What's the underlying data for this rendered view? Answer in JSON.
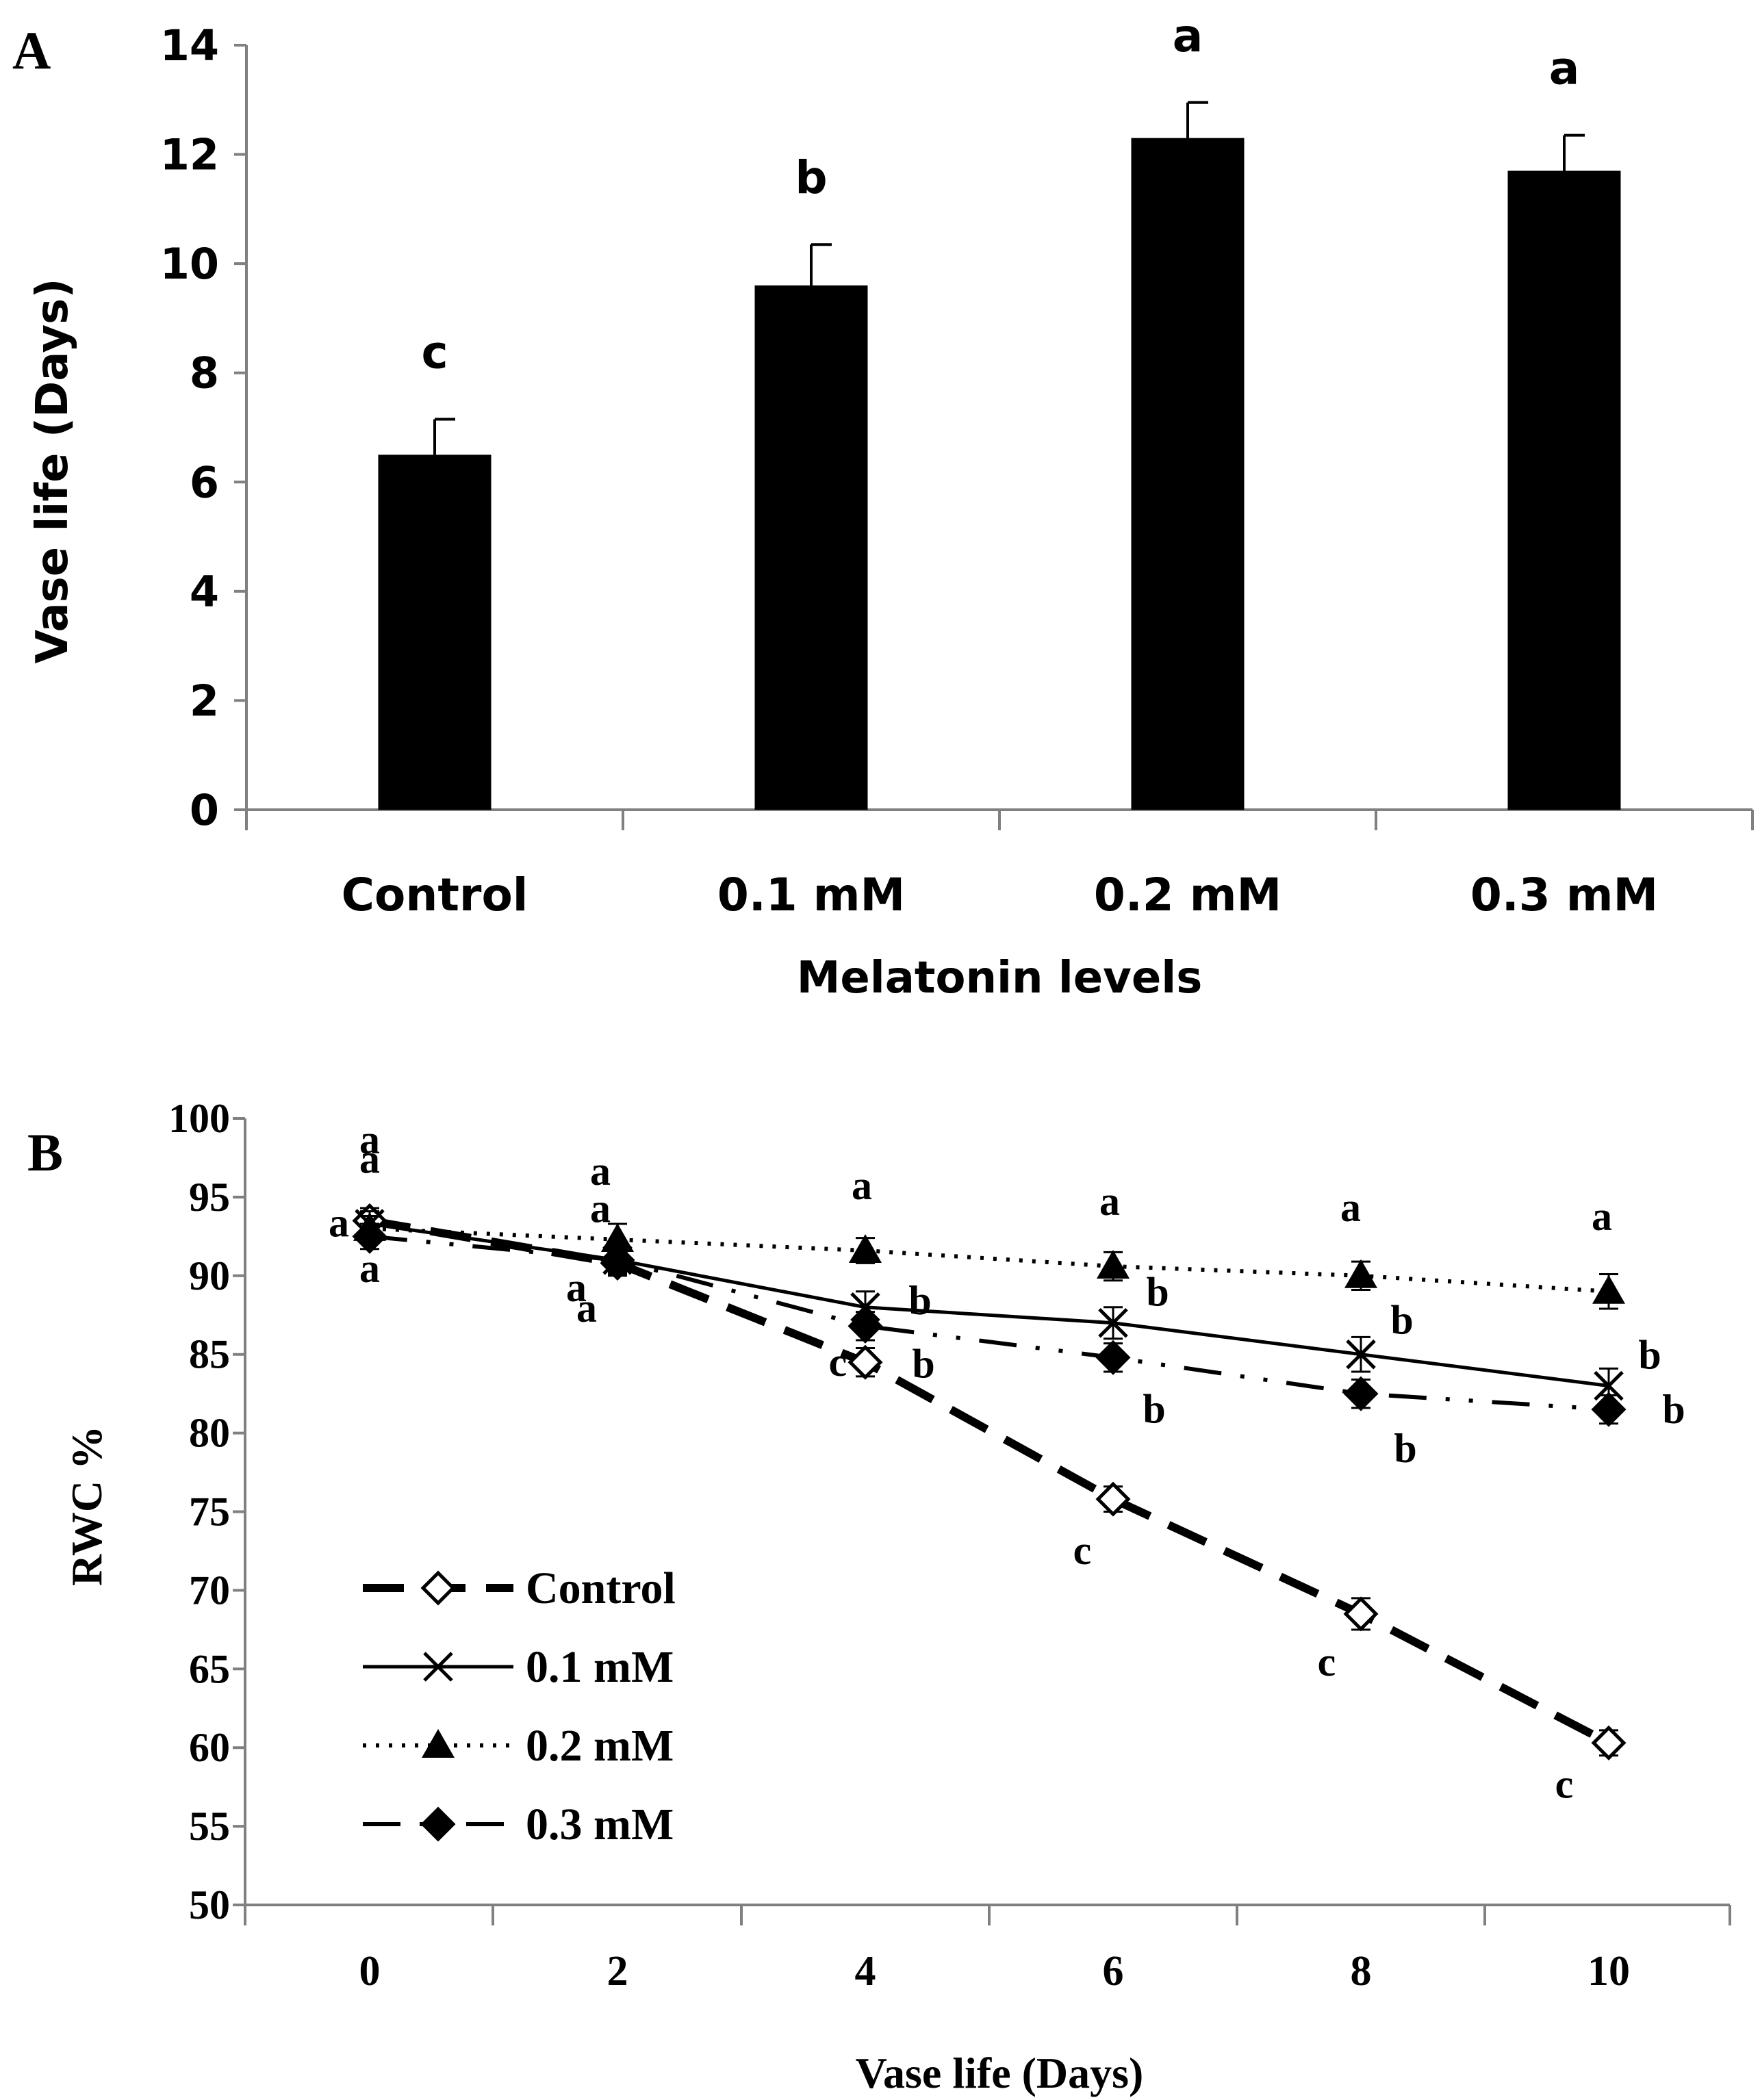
{
  "chart_data": [
    {
      "panel": "A",
      "type": "bar",
      "categories": [
        "Control",
        "0.1 mM",
        "0.2 mM",
        "0.3 mM"
      ],
      "values": [
        6.5,
        9.6,
        12.3,
        11.7
      ],
      "errors": [
        0.65,
        0.75,
        0.65,
        0.65
      ],
      "letters": [
        "c",
        "b",
        "a",
        "a"
      ],
      "xlabel": "Melatonin levels",
      "ylabel": "Vase life (Days)",
      "ylim": [
        0,
        14
      ],
      "yticks": [
        0,
        2,
        4,
        6,
        8,
        10,
        12,
        14
      ],
      "bar_color": "#000000"
    },
    {
      "panel": "B",
      "type": "line",
      "x": [
        0,
        2,
        4,
        6,
        8,
        10
      ],
      "xticks": [
        "0",
        "2",
        "4",
        "6",
        "8",
        "10"
      ],
      "xlabel": "Vase life (Days)",
      "ylabel": "RWC %",
      "ylim": [
        50,
        100
      ],
      "yticks": [
        50,
        55,
        60,
        65,
        70,
        75,
        80,
        85,
        90,
        95,
        100
      ],
      "legend_position": "bottom-left",
      "series": [
        {
          "name": "Control",
          "values": [
            93.5,
            90.8,
            84.5,
            75.8,
            68.5,
            60.3
          ],
          "errors": [
            0.8,
            0.8,
            0.9,
            0.8,
            1.0,
            0.8
          ],
          "marker": "open-diamond",
          "dash": "long-dash",
          "letters": [
            "a",
            "a",
            "c",
            "c",
            "c",
            "c"
          ]
        },
        {
          "name": "0.1 mM",
          "values": [
            93.3,
            91.0,
            88.0,
            87.0,
            85.0,
            83.0
          ],
          "errors": [
            0.8,
            0.9,
            1.0,
            1.0,
            1.1,
            1.1
          ],
          "marker": "x",
          "dash": "solid",
          "letters": [
            "a",
            "a",
            "b",
            "b",
            "b",
            "b"
          ]
        },
        {
          "name": "0.2 mM",
          "values": [
            93.0,
            92.3,
            91.6,
            90.6,
            90.0,
            89.0
          ],
          "errors": [
            0.8,
            1.0,
            0.8,
            0.9,
            0.9,
            1.1
          ],
          "marker": "triangle",
          "dash": "dotted",
          "letters": [
            "a",
            "a",
            "a",
            "a",
            "a",
            "a"
          ]
        },
        {
          "name": "0.3 mM",
          "values": [
            92.5,
            91.0,
            86.8,
            84.8,
            82.5,
            81.5
          ],
          "errors": [
            0.8,
            0.8,
            0.9,
            0.9,
            0.9,
            0.9
          ],
          "marker": "filled-diamond",
          "dash": "dash-dot-dot",
          "letters": [
            "a",
            "a",
            "b",
            "b",
            "b",
            "b"
          ]
        }
      ]
    }
  ]
}
